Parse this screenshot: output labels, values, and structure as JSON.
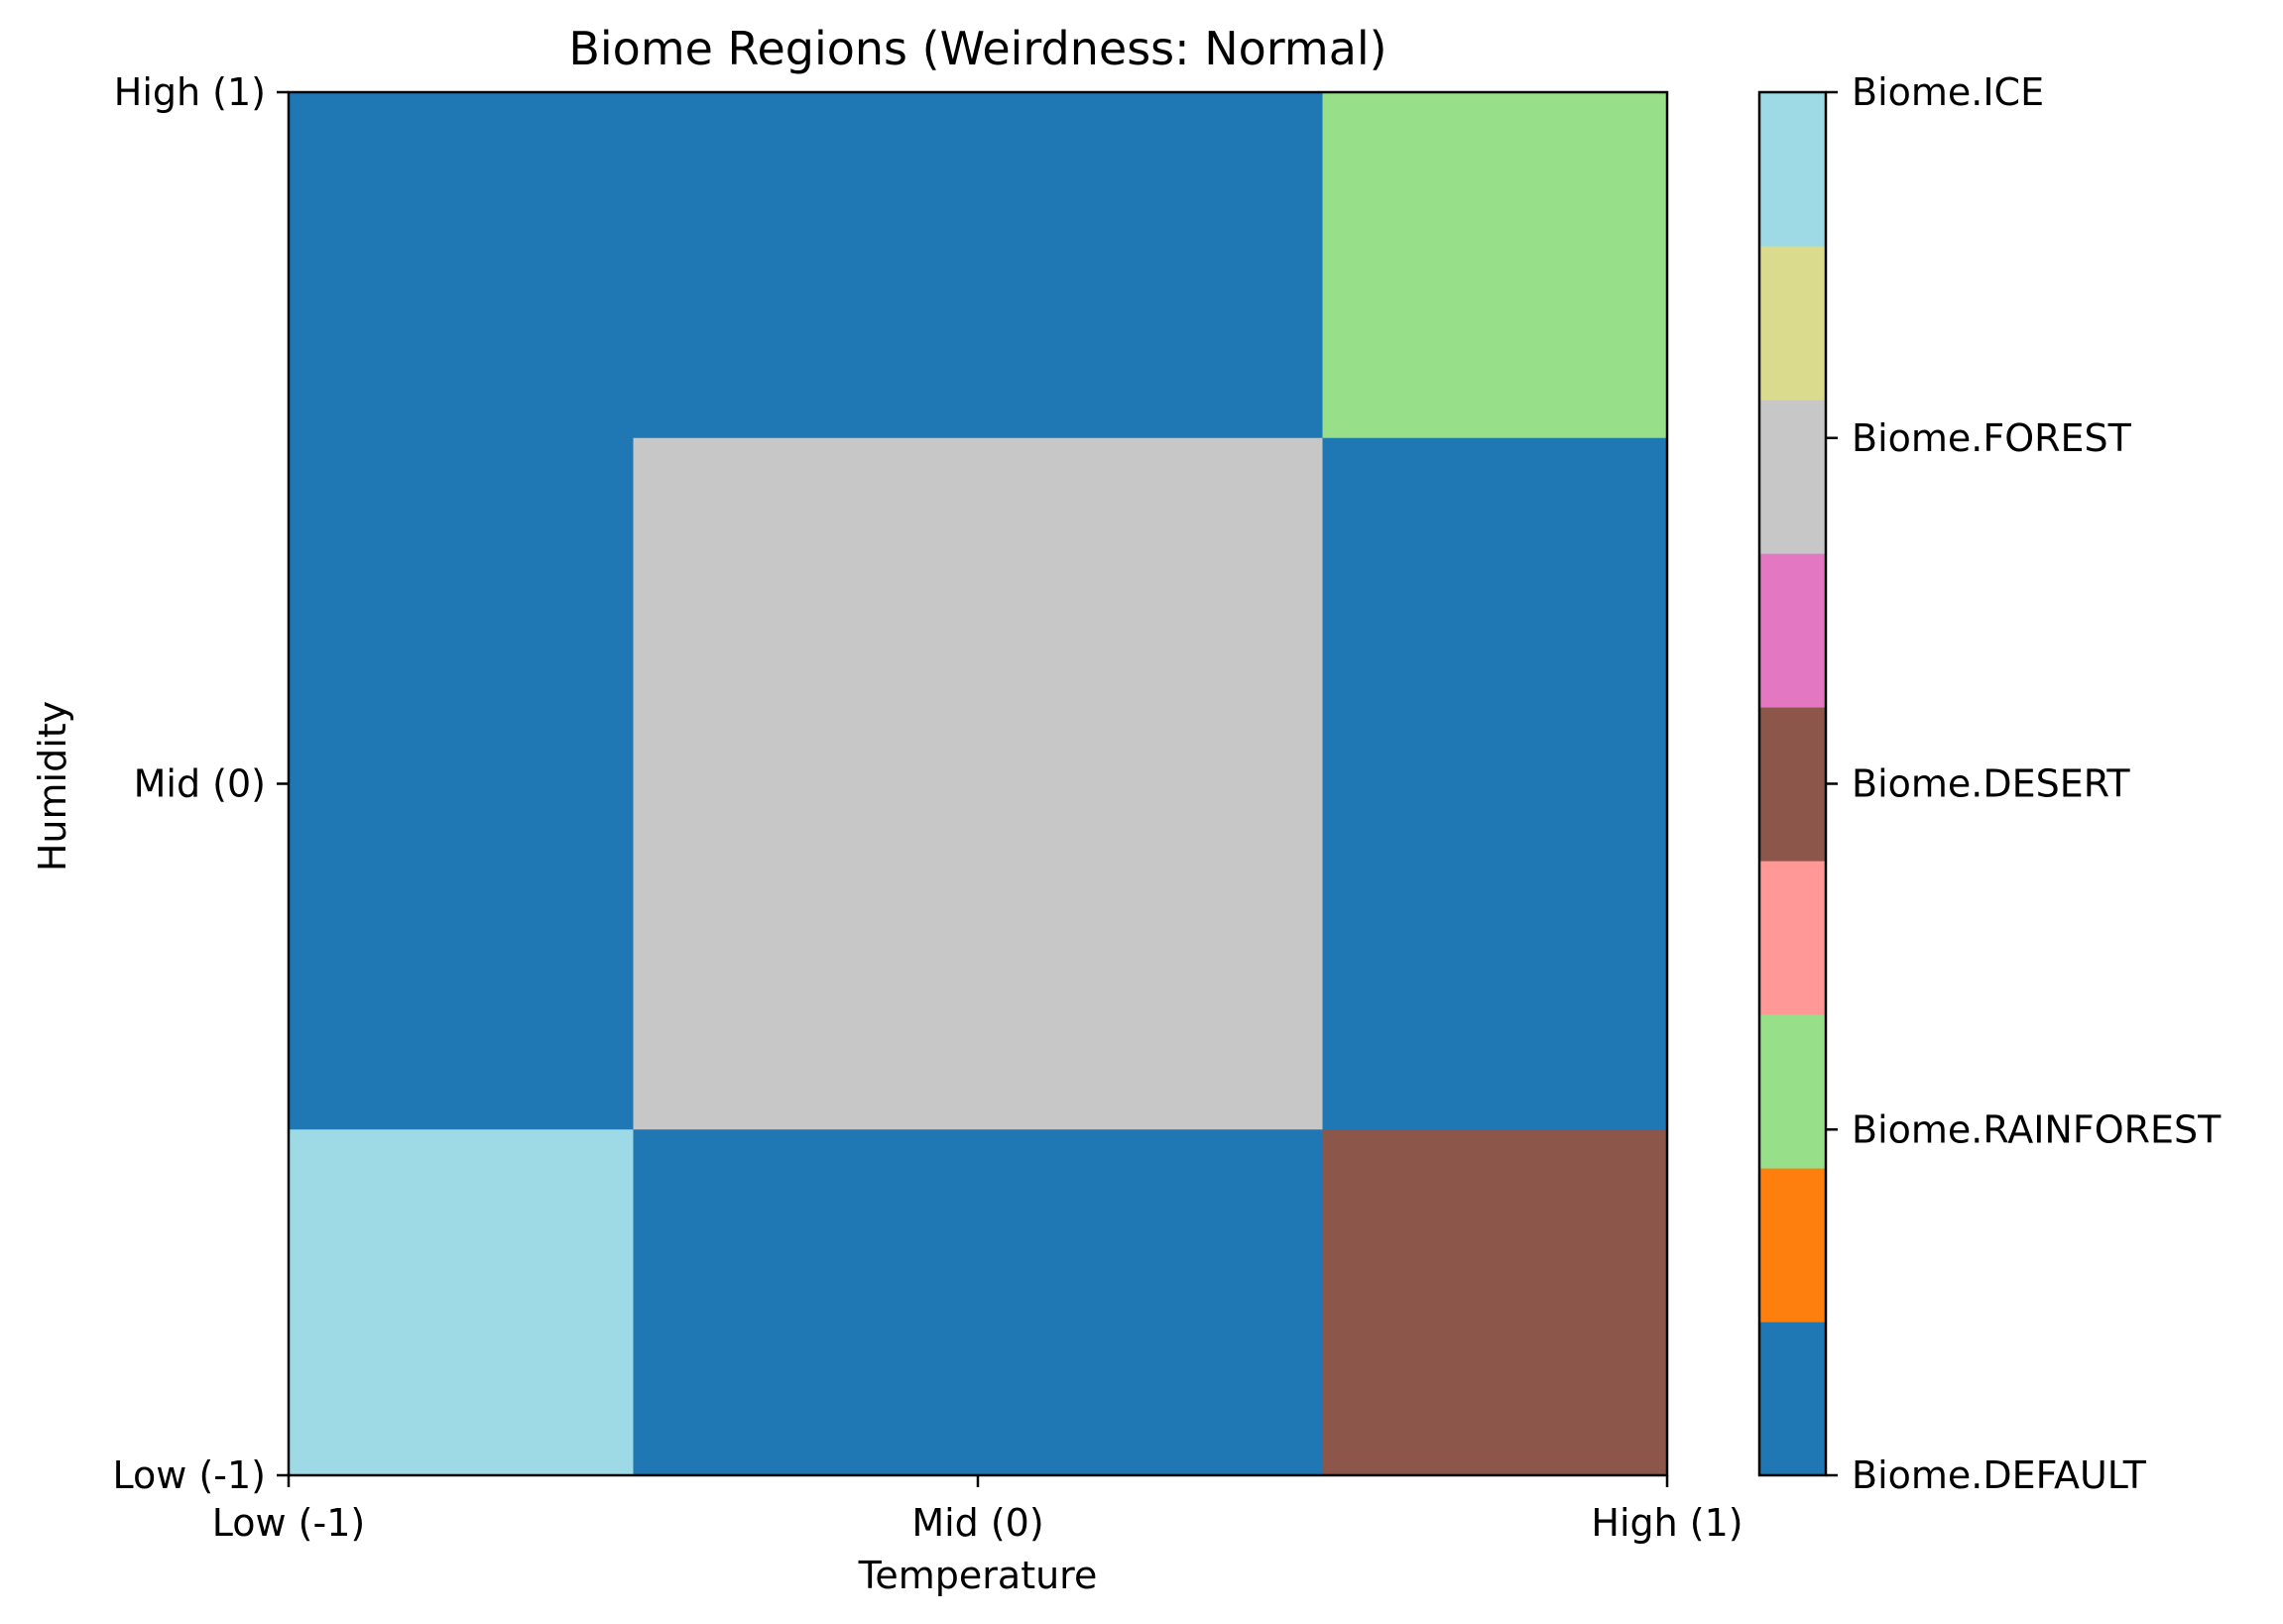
{
  "chart_data": {
    "type": "heatmap",
    "title": "Biome Regions (Weirdness: Normal)",
    "xlabel": "Temperature",
    "ylabel": "Humidity",
    "x_ticks": [
      {
        "value": -1,
        "label": "Low (-1)"
      },
      {
        "value": 0,
        "label": "Mid (0)"
      },
      {
        "value": 1,
        "label": "High (1)"
      }
    ],
    "y_ticks": [
      {
        "value": -1,
        "label": "Low (-1)"
      },
      {
        "value": 0,
        "label": "Mid (0)"
      },
      {
        "value": 1,
        "label": "High (1)"
      }
    ],
    "xlim": [
      -1,
      1
    ],
    "ylim": [
      -1,
      1
    ],
    "regions": [
      {
        "x": [
          -1,
          -0.5
        ],
        "y": [
          0.5,
          1
        ],
        "biome": "Biome.DEFAULT"
      },
      {
        "x": [
          -0.5,
          0.5
        ],
        "y": [
          0.5,
          1
        ],
        "biome": "Biome.DEFAULT"
      },
      {
        "x": [
          0.5,
          1
        ],
        "y": [
          0.5,
          1
        ],
        "biome": "Biome.RAINFOREST"
      },
      {
        "x": [
          -1,
          -0.5
        ],
        "y": [
          -0.5,
          0.5
        ],
        "biome": "Biome.DEFAULT"
      },
      {
        "x": [
          -0.5,
          0.5
        ],
        "y": [
          -0.5,
          0.5
        ],
        "biome": "Biome.FOREST"
      },
      {
        "x": [
          0.5,
          1
        ],
        "y": [
          -0.5,
          0.5
        ],
        "biome": "Biome.DEFAULT"
      },
      {
        "x": [
          -1,
          -0.5
        ],
        "y": [
          -1,
          -0.5
        ],
        "biome": "Biome.ICE"
      },
      {
        "x": [
          -0.5,
          0.5
        ],
        "y": [
          -1,
          -0.5
        ],
        "biome": "Biome.DEFAULT"
      },
      {
        "x": [
          0.5,
          1
        ],
        "y": [
          -1,
          -0.5
        ],
        "biome": "Biome.DESERT"
      }
    ],
    "colorbar": {
      "range": [
        0,
        8
      ],
      "segments": [
        {
          "value": 0,
          "color": "#1f77b4"
        },
        {
          "value": 1,
          "color": "#ff7f0e"
        },
        {
          "value": 2,
          "color": "#98df8a"
        },
        {
          "value": 3,
          "color": "#ff9896"
        },
        {
          "value": 4,
          "color": "#8c564b"
        },
        {
          "value": 5,
          "color": "#e377c2"
        },
        {
          "value": 6,
          "color": "#c7c7c7"
        },
        {
          "value": 7,
          "color": "#dbdb8d"
        },
        {
          "value": 8,
          "color": "#9edae5"
        }
      ],
      "ticks": [
        {
          "value": 0,
          "label": "Biome.DEFAULT"
        },
        {
          "value": 2,
          "label": "Biome.RAINFOREST"
        },
        {
          "value": 4,
          "label": "Biome.DESERT"
        },
        {
          "value": 6,
          "label": "Biome.FOREST"
        },
        {
          "value": 8,
          "label": "Biome.ICE"
        }
      ]
    },
    "biome_colors": {
      "Biome.DEFAULT": "#1f77b4",
      "Biome.RAINFOREST": "#98df8a",
      "Biome.DESERT": "#8c564b",
      "Biome.FOREST": "#c7c7c7",
      "Biome.ICE": "#9edae5"
    }
  }
}
